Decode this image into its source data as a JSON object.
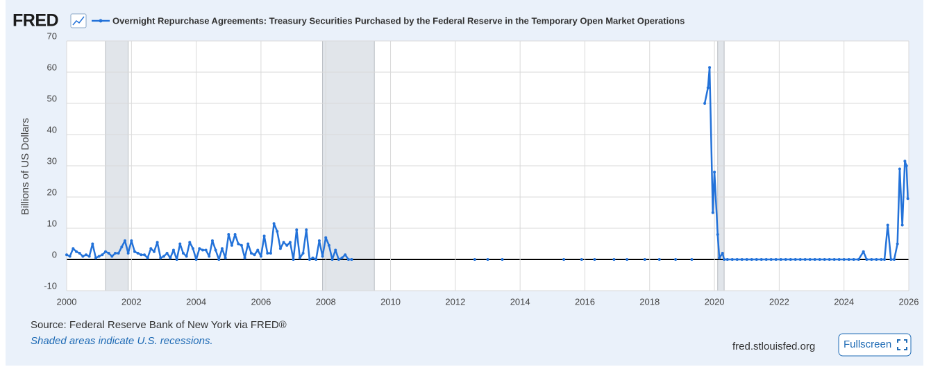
{
  "logo": "FRED",
  "source": "Source: Federal Reserve Bank of New York via FRED®",
  "recession_note": "Shaded areas indicate U.S. recessions.",
  "site": "fred.stlouisfed.org",
  "fullscreen_button": "Fullscreen",
  "chart_data": {
    "type": "line",
    "y_label": "Billions of US Dollars",
    "grid": true,
    "markers": true,
    "xlim": [
      2000,
      2026
    ],
    "xticks": [
      2000,
      2002,
      2004,
      2006,
      2008,
      2010,
      2012,
      2014,
      2016,
      2018,
      2020,
      2022,
      2024,
      2026
    ],
    "ylim": [
      -10,
      70
    ],
    "yticks": [
      -10,
      0,
      10,
      20,
      30,
      40,
      50,
      60,
      70
    ],
    "recessions": [
      [
        2001.2,
        2001.9
      ],
      [
        2007.9,
        2009.5
      ],
      [
        2020.1,
        2020.3
      ]
    ],
    "x": [
      2000.0,
      2000.1,
      2000.2,
      2000.3,
      2000.4,
      2000.5,
      2000.6,
      2000.7,
      2000.8,
      2000.9,
      2001.0,
      2001.1,
      2001.2,
      2001.3,
      2001.4,
      2001.5,
      2001.6,
      2001.7,
      2001.8,
      2001.9,
      2002.0,
      2002.1,
      2002.2,
      2002.3,
      2002.4,
      2002.5,
      2002.6,
      2002.7,
      2002.8,
      2002.9,
      2003.0,
      2003.1,
      2003.2,
      2003.3,
      2003.4,
      2003.5,
      2003.6,
      2003.7,
      2003.8,
      2003.9,
      2004.0,
      2004.1,
      2004.2,
      2004.3,
      2004.4,
      2004.5,
      2004.6,
      2004.7,
      2004.8,
      2004.9,
      2005.0,
      2005.1,
      2005.2,
      2005.3,
      2005.4,
      2005.5,
      2005.6,
      2005.7,
      2005.8,
      2005.9,
      2006.0,
      2006.1,
      2006.2,
      2006.3,
      2006.4,
      2006.5,
      2006.6,
      2006.7,
      2006.8,
      2006.9,
      2007.0,
      2007.1,
      2007.2,
      2007.3,
      2007.4,
      2007.5,
      2007.6,
      2007.7,
      2007.8,
      2007.9,
      2008.0,
      2008.1,
      2008.2,
      2008.3,
      2008.4,
      2008.5,
      2008.6,
      2008.7,
      2008.8,
      2010.5,
      2012.6,
      2012.8,
      2013.0,
      2013.2,
      2013.45,
      2014.5,
      2015.35,
      2015.6,
      2015.9,
      2016.1,
      2016.3,
      2016.6,
      2016.9,
      2017.1,
      2017.3,
      2017.6,
      2017.85,
      2018.1,
      2018.3,
      2018.55,
      2018.8,
      2019.05,
      2019.3,
      2019.5,
      2019.7,
      2019.8,
      2019.85,
      2019.95,
      2020.0,
      2020.1,
      2020.15,
      2020.25,
      2020.3,
      2020.4,
      2020.55,
      2020.7,
      2020.85,
      2021.0,
      2021.15,
      2021.3,
      2021.45,
      2021.6,
      2021.75,
      2021.9,
      2022.05,
      2022.2,
      2022.35,
      2022.5,
      2022.65,
      2022.8,
      2022.95,
      2023.1,
      2023.25,
      2023.4,
      2023.55,
      2023.7,
      2023.85,
      2024.0,
      2024.15,
      2024.3,
      2024.45,
      2024.6,
      2024.7,
      2024.85,
      2025.0,
      2025.15,
      2025.25,
      2025.35,
      2025.45,
      2025.55,
      2025.65,
      2025.72,
      2025.8,
      2025.88,
      2025.93,
      2025.97
    ],
    "series": [
      {
        "name": "Overnight Repurchase Agreements: Treasury Securities Purchased by the Federal Reserve in the Temporary Open Market Operations",
        "color": "#2372d9",
        "values": [
          1.5,
          1,
          3.5,
          2.5,
          2,
          1,
          1.5,
          1,
          5,
          0.5,
          1,
          1.5,
          2.5,
          2,
          1,
          2,
          2,
          4,
          6,
          2,
          6,
          2.5,
          2,
          1.5,
          1.5,
          0.5,
          3.5,
          2.5,
          5.5,
          0.5,
          1,
          2,
          0.5,
          3,
          0,
          5,
          2,
          1,
          5.5,
          3.5,
          0,
          3.5,
          3,
          3,
          1,
          6,
          3,
          0,
          3.5,
          0.5,
          8,
          4.5,
          8,
          5,
          4.5,
          0.5,
          5,
          2,
          1.5,
          3,
          1,
          7.5,
          2,
          2,
          11.5,
          9,
          3.5,
          5.5,
          4.5,
          5.5,
          0,
          9.5,
          0.5,
          2,
          9.5,
          0,
          0.5,
          0,
          6,
          1,
          7,
          4.5,
          0,
          3,
          0,
          0.5,
          1.5,
          0,
          0,
          null,
          0,
          null,
          0,
          null,
          0,
          null,
          0,
          null,
          0,
          null,
          0,
          null,
          0,
          null,
          0,
          null,
          0,
          null,
          0,
          null,
          0,
          null,
          0,
          null,
          50,
          55,
          61.5,
          15,
          28,
          8,
          0.5,
          2,
          0,
          0,
          0,
          0,
          0,
          0,
          0,
          0,
          0,
          0,
          0,
          0,
          0,
          0,
          0,
          0,
          0,
          0,
          0,
          0,
          0,
          0,
          0,
          0,
          0,
          0,
          0,
          0,
          0,
          2.5,
          0,
          0,
          0,
          0,
          0,
          11,
          0,
          0,
          5,
          29,
          11,
          31.5,
          30,
          19.5
        ]
      }
    ]
  }
}
